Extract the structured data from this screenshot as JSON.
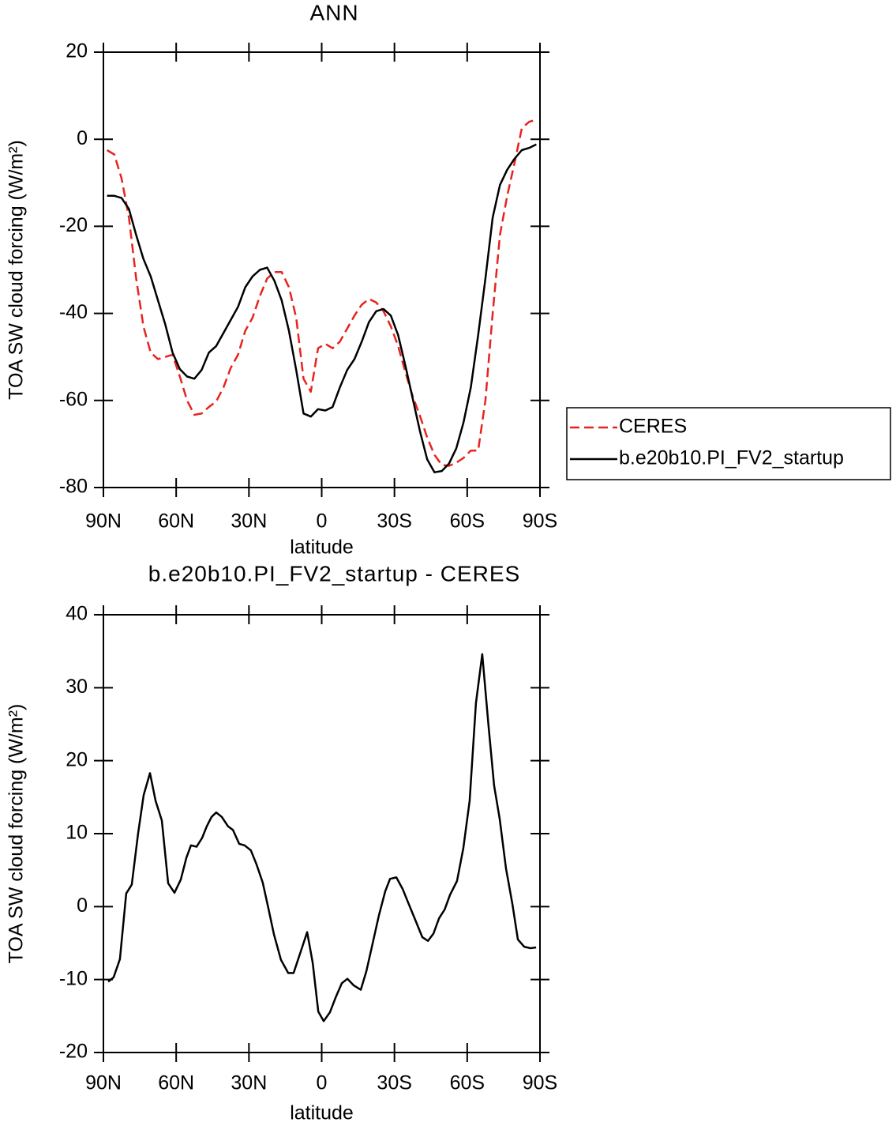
{
  "chart_data": [
    {
      "type": "line",
      "title": "ANN",
      "xlabel": "latitude",
      "ylabel": "TOA SW cloud forcing (W/m²)",
      "x": [
        88.5,
        85.5,
        82.5,
        79.5,
        76.5,
        73.5,
        70.5,
        67.5,
        64.5,
        61.5,
        58.5,
        55.5,
        52.5,
        49.5,
        46.5,
        43.5,
        40.5,
        37.5,
        34.5,
        31.5,
        28.5,
        25.5,
        22.5,
        19.5,
        16.5,
        13.5,
        10.5,
        7.5,
        4.5,
        1.5,
        -1.5,
        -4.5,
        -7.5,
        -10.5,
        -13.5,
        -16.5,
        -19.5,
        -22.5,
        -25.5,
        -28.5,
        -31.5,
        -34.5,
        -37.5,
        -40.5,
        -43.5,
        -46.5,
        -49.5,
        -52.5,
        -55.5,
        -58.5,
        -61.5,
        -64.5,
        -67.5,
        -70.5,
        -73.5,
        -76.5,
        -79.5,
        -82.5,
        -85.5,
        -88.5
      ],
      "series": [
        {
          "name": "CERES",
          "color": "#e8231f",
          "style": "dashed",
          "values": [
            -2.5,
            -3.5,
            -9,
            -18,
            -32,
            -43,
            -49,
            -50.5,
            -50,
            -49.5,
            -54.5,
            -60,
            -63.3,
            -63,
            -61.5,
            -60.2,
            -57,
            -52.5,
            -49.5,
            -44,
            -41,
            -36,
            -32,
            -30.5,
            -30.5,
            -34,
            -41,
            -55,
            -58,
            -48,
            -47,
            -48,
            -46.5,
            -43.5,
            -40.5,
            -38,
            -36.7,
            -37.5,
            -39.5,
            -43,
            -47.5,
            -53.5,
            -59,
            -63.5,
            -68.5,
            -72.5,
            -74.8,
            -75,
            -74.3,
            -73.2,
            -71.5,
            -71.5,
            -60,
            -40,
            -22,
            -13,
            -5.5,
            2.5,
            4,
            4.5
          ]
        },
        {
          "name": "b.e20b10.PI_FV2_startup",
          "color": "#000000",
          "style": "solid",
          "values": [
            -13,
            -13,
            -13.5,
            -16,
            -22,
            -27.5,
            -31.5,
            -37,
            -42.5,
            -49,
            -52.8,
            -54.5,
            -55,
            -53,
            -49,
            -47.5,
            -44.5,
            -41.5,
            -38.5,
            -34,
            -31.5,
            -30,
            -29.5,
            -32.5,
            -37,
            -44,
            -53,
            -63,
            -63.7,
            -62,
            -62.3,
            -61.5,
            -57,
            -53,
            -50.5,
            -46.5,
            -42,
            -39.5,
            -39,
            -40.5,
            -45,
            -52,
            -59.5,
            -67,
            -73.5,
            -76.5,
            -76.2,
            -74.5,
            -71,
            -65,
            -57,
            -45,
            -32,
            -18,
            -10.5,
            -7,
            -4.5,
            -2.5,
            -2,
            -1.2
          ]
        }
      ],
      "xlim": [
        90,
        -90
      ],
      "xticks": [
        {
          "value": 90,
          "label": "90N"
        },
        {
          "value": 60,
          "label": "60N"
        },
        {
          "value": 30,
          "label": "30N"
        },
        0,
        {
          "value": -30,
          "label": "30S"
        },
        {
          "value": -60,
          "label": "60S"
        },
        {
          "value": -90,
          "label": "90S"
        }
      ],
      "ylim": [
        -80,
        20
      ],
      "yticks": [
        -80,
        -60,
        -40,
        -20,
        0,
        20
      ],
      "legend": "right"
    },
    {
      "type": "line",
      "title": "b.e20b10.PI_FV2_startup - CERES",
      "xlabel": "latitude",
      "ylabel": "TOA SW cloud forcing (W/m²)",
      "x": [
        88.0,
        85.8,
        83.2,
        80.6,
        78.3,
        75.7,
        73.4,
        70.8,
        68.5,
        65.9,
        63.3,
        60.7,
        58.1,
        55.8,
        53.9,
        51.6,
        49.3,
        47.4,
        45.4,
        43.5,
        41.2,
        38.6,
        36.6,
        34.0,
        31.8,
        29.2,
        26.9,
        24.3,
        22.0,
        19.7,
        16.8,
        13.8,
        11.6,
        6.0,
        3.7,
        1.4,
        -0.8,
        -3.4,
        -5.7,
        -8.3,
        -10.6,
        -13.2,
        -16.1,
        -18.4,
        -20.7,
        -23.6,
        -26.2,
        -28.2,
        -30.8,
        -33.4,
        -35.7,
        -38.3,
        -41.5,
        -43.8,
        -46.1,
        -48.4,
        -50.7,
        -52.9,
        -55.8,
        -58.4,
        -61.0,
        -63.6,
        -66.2,
        -68.8,
        -71.1,
        -73.4,
        -76.0,
        -78.6,
        -80.9,
        -83.5,
        -86.1,
        -88.4
      ],
      "values": [
        -10.3,
        -9.7,
        -7.2,
        1.8,
        3,
        10,
        15.3,
        18.3,
        14.5,
        11.8,
        3.2,
        1.9,
        3.7,
        6.7,
        8.4,
        8.2,
        9.4,
        11,
        12.3,
        12.9,
        12.3,
        11,
        10.5,
        8.6,
        8.4,
        7.7,
        5.8,
        3.3,
        -0.2,
        -3.8,
        -7.3,
        -9.1,
        -9.1,
        -3.5,
        -7.7,
        -14.4,
        -15.7,
        -14.5,
        -12.5,
        -10.5,
        -9.9,
        -10.8,
        -11.4,
        -8.9,
        -5.5,
        -1.2,
        2.1,
        3.8,
        4.0,
        2.4,
        0.5,
        -1.6,
        -4.2,
        -4.7,
        -3.7,
        -1.6,
        -0.4,
        1.6,
        3.5,
        8.0,
        14.5,
        27.9,
        34.6,
        24.7,
        16.6,
        12,
        5.2,
        0.4,
        -4.5,
        -5.5,
        -5.7,
        -5.6
      ],
      "color": "#000000",
      "xlim": [
        90,
        -90
      ],
      "xticks": [
        {
          "value": 90,
          "label": "90N"
        },
        {
          "value": 60,
          "label": "60N"
        },
        {
          "value": 30,
          "label": "30N"
        },
        0,
        {
          "value": -30,
          "label": "30S"
        },
        {
          "value": -60,
          "label": "60S"
        },
        {
          "value": -90,
          "label": "90S"
        }
      ],
      "ylim": [
        -20,
        40
      ],
      "yticks": [
        -20,
        -10,
        0,
        10,
        20,
        30,
        40
      ]
    }
  ]
}
